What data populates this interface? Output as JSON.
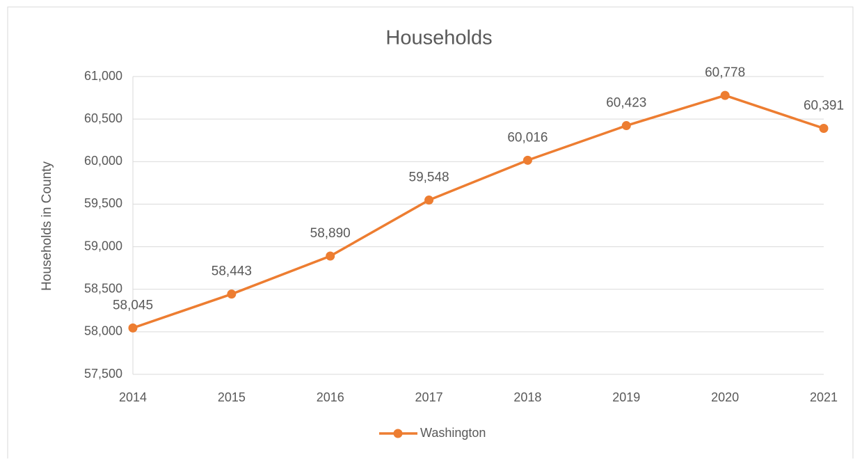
{
  "chart_data": {
    "type": "line",
    "title": "Households",
    "y_label": "Households in County",
    "categories": [
      "2014",
      "2015",
      "2016",
      "2017",
      "2018",
      "2019",
      "2020",
      "2021"
    ],
    "series": [
      {
        "name": "Washington",
        "color": "#ed7d31",
        "values": [
          58045,
          58443,
          58890,
          59548,
          60016,
          60423,
          60778,
          60391
        ],
        "value_labels": [
          "58,045",
          "58,443",
          "58,890",
          "59,548",
          "60,016",
          "60,423",
          "60,778",
          "60,391"
        ]
      }
    ],
    "ylim": [
      57500,
      61000
    ],
    "yticks": [
      {
        "value": 57500,
        "label": "57,500"
      },
      {
        "value": 58000,
        "label": "58,000"
      },
      {
        "value": 58500,
        "label": "58,500"
      },
      {
        "value": 59000,
        "label": "59,000"
      },
      {
        "value": 59500,
        "label": "59,500"
      },
      {
        "value": 60000,
        "label": "60,000"
      },
      {
        "value": 60500,
        "label": "60,500"
      },
      {
        "value": 61000,
        "label": "61,000"
      }
    ],
    "grid": true,
    "legend": "bottom"
  }
}
